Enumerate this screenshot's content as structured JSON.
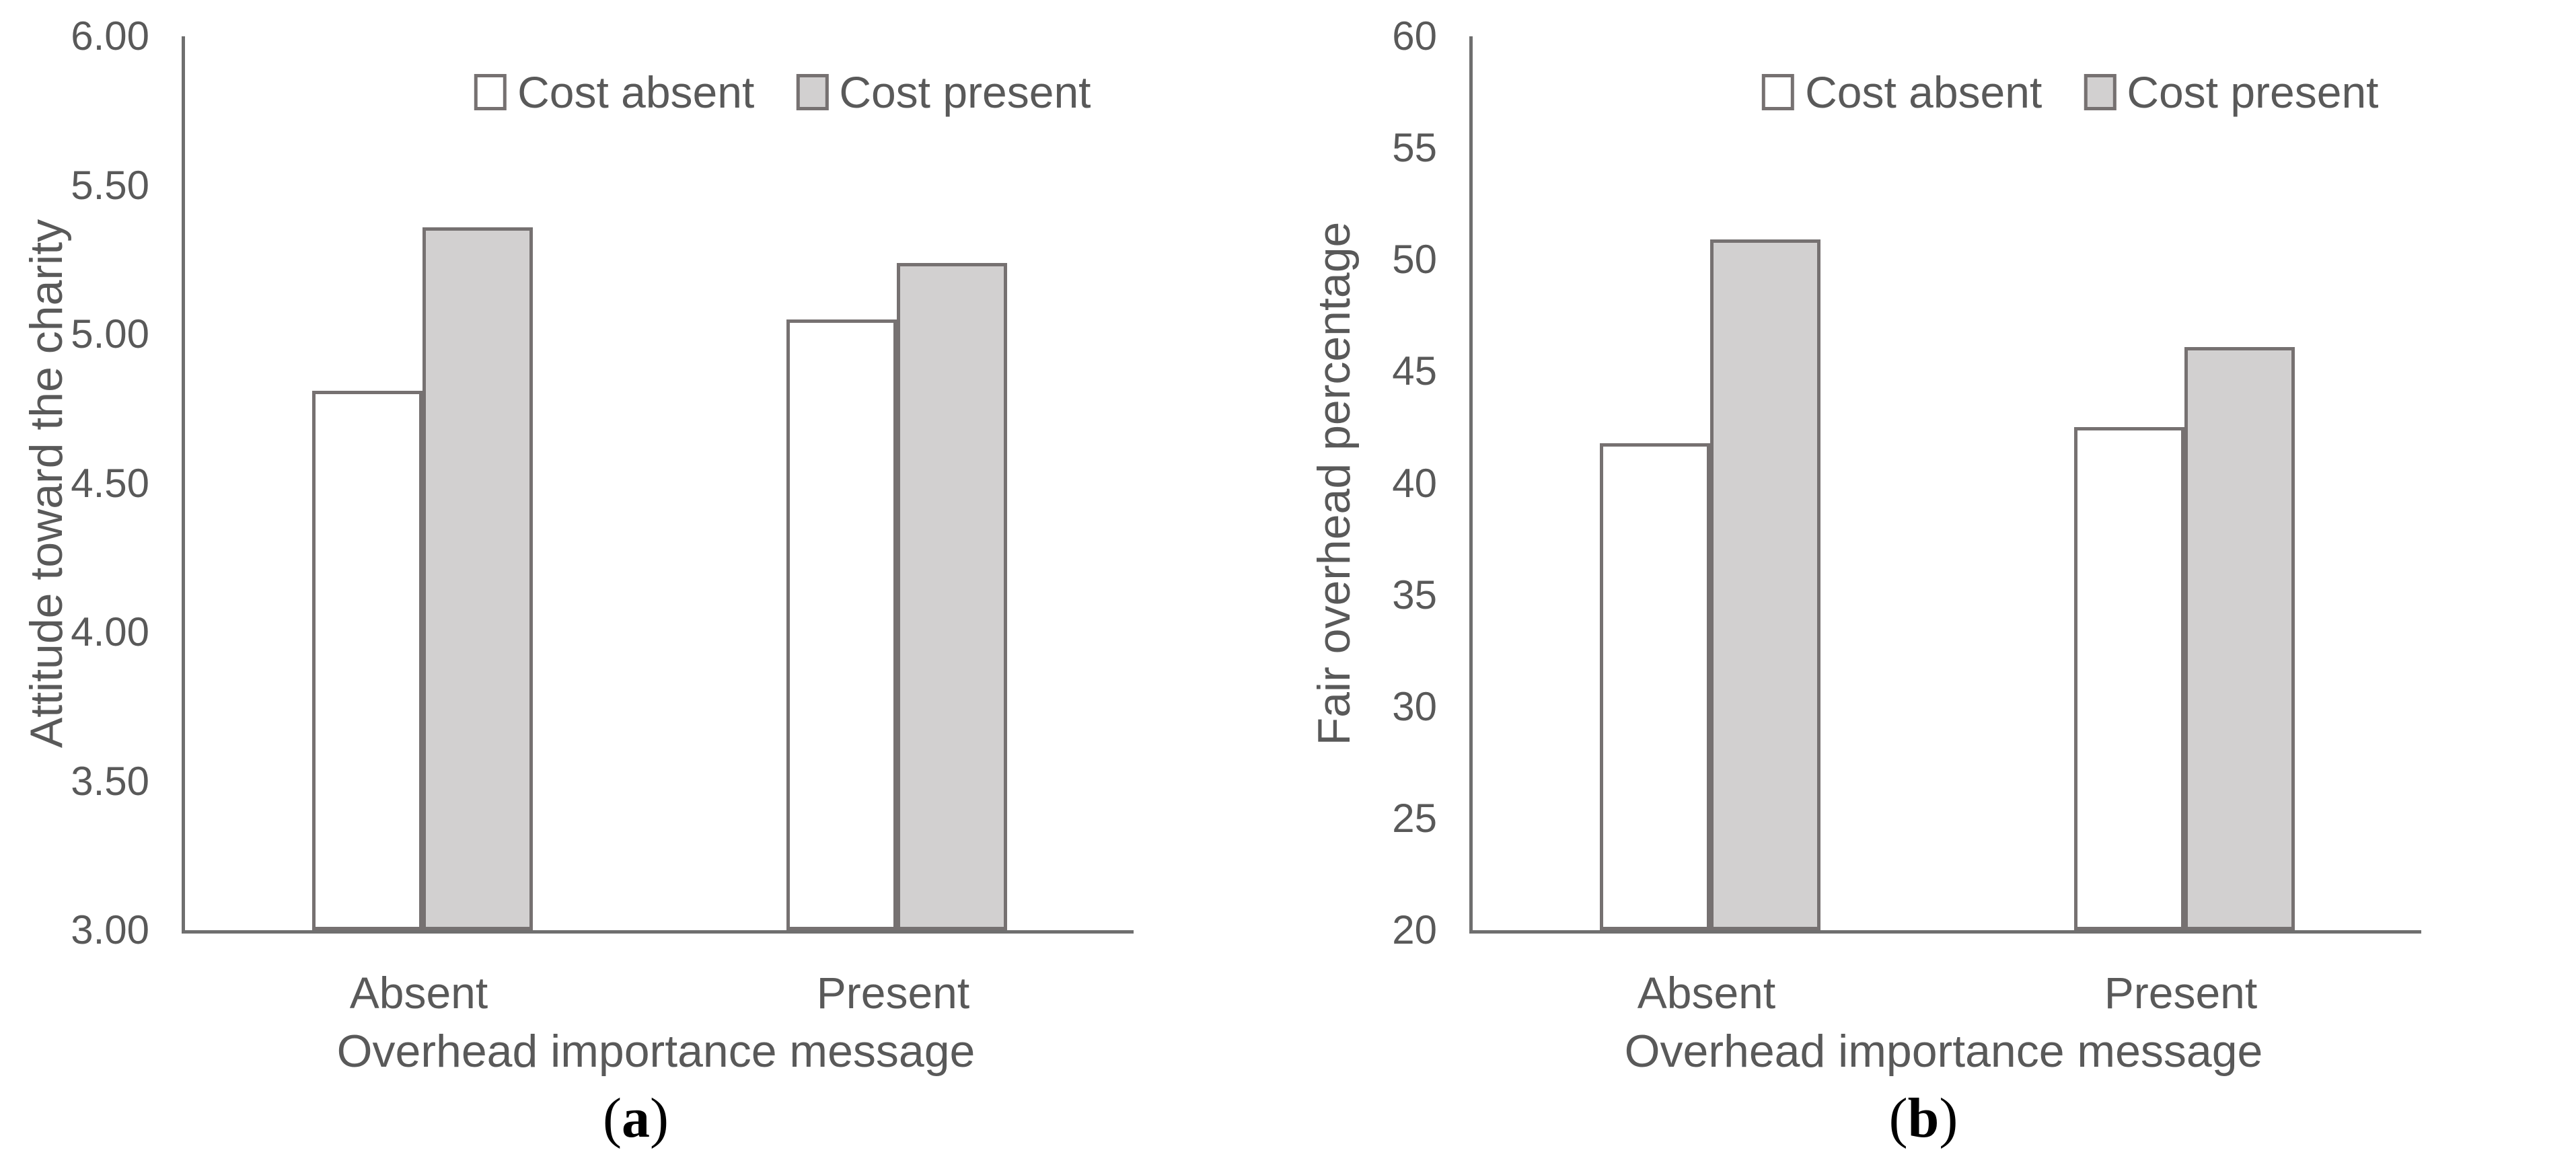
{
  "figure": {
    "background": "#ffffff",
    "colors": {
      "text": "#595959",
      "axis_line": "#6f6f6f",
      "bar_border": "#767171",
      "bar_fill_cost_absent": "#ffffff",
      "bar_fill_cost_present": "#d2d0d0",
      "panel_label": "#000000"
    },
    "legend": {
      "items": [
        {
          "label": "Cost absent",
          "fill": "#ffffff"
        },
        {
          "label": "Cost present",
          "fill": "#d2d0d0"
        }
      ]
    }
  },
  "chart_data": [
    {
      "type": "bar",
      "panel": "a",
      "categories": [
        "Absent",
        "Present"
      ],
      "series": [
        {
          "name": "Cost absent",
          "values": [
            4.81,
            5.05
          ]
        },
        {
          "name": "Cost present",
          "values": [
            5.36,
            5.24
          ]
        }
      ],
      "xlabel": "Overhead importance message",
      "ylabel": "Attitude toward the charity",
      "ylim": [
        3.0,
        6.0
      ],
      "ytick_step": 0.5,
      "ytick_labels_top_to_bottom": [
        "6.00",
        "5.50",
        "5.00",
        "4.50",
        "4.00",
        "3.50",
        "3.00"
      ],
      "grid": false,
      "legend_position": "top-inside"
    },
    {
      "type": "bar",
      "panel": "b",
      "categories": [
        "Absent",
        "Present"
      ],
      "series": [
        {
          "name": "Cost absent",
          "values": [
            41.8,
            42.5
          ]
        },
        {
          "name": "Cost present",
          "values": [
            50.9,
            46.1
          ]
        }
      ],
      "xlabel": "Overhead importance message",
      "ylabel": "Fair overhead percentage",
      "ylim": [
        20,
        60
      ],
      "ytick_step": 5,
      "ytick_labels_top_to_bottom": [
        "60",
        "55",
        "50",
        "45",
        "40",
        "35",
        "30",
        "25",
        "20"
      ],
      "grid": false,
      "legend_position": "top-inside"
    }
  ],
  "panels": [
    {
      "open": "(",
      "letter": "a",
      "close": ")"
    },
    {
      "open": "(",
      "letter": "b",
      "close": ")"
    }
  ]
}
